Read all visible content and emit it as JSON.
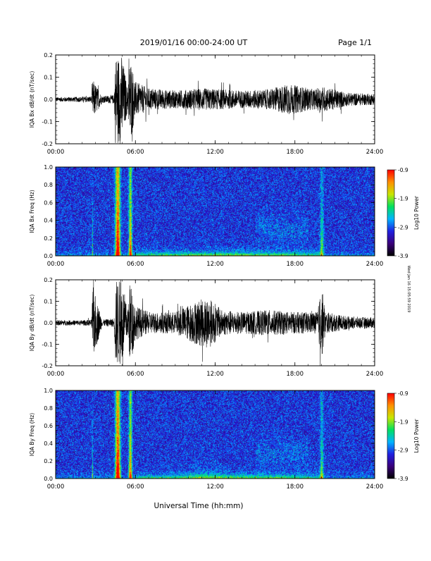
{
  "header": {
    "title": "2019/01/16  00:00-24:00 UT",
    "page": "Page 1/1"
  },
  "footer": {
    "xlabel": "Universal Time (hh:mm)",
    "side_stamp": "Wed Jan 16 15:05:59 2019"
  },
  "colorbar": {
    "label": "Log10 Power",
    "ticks": [
      "-0.9",
      "-1.9",
      "-2.9",
      "-3.9"
    ],
    "colors": [
      "#000000",
      "#3a007a",
      "#2020e0",
      "#00b4ff",
      "#00e060",
      "#c8e600",
      "#ff9000",
      "#ff0000"
    ]
  },
  "chart_data": [
    {
      "type": "line",
      "ylabel": "IQA Bx dB/dt (nT/sec)",
      "xlim": [
        "00:00",
        "24:00"
      ],
      "ylim": [
        -0.2,
        0.2
      ],
      "x_ticks": [
        "00:00",
        "06:00",
        "12:00",
        "18:00",
        "24:00"
      ],
      "y_ticks": [
        "0.2",
        "0.1",
        "0.0",
        "-0.1",
        "-0.2"
      ],
      "envelope_hours": [
        0,
        2,
        2.7,
        2.8,
        3.5,
        4.4,
        4.5,
        5.0,
        5.4,
        5.6,
        6.0,
        7,
        9,
        11,
        14,
        16,
        17.5,
        19.5,
        20,
        22,
        24
      ],
      "envelope_amplitude": [
        0.01,
        0.012,
        0.014,
        0.09,
        0.015,
        0.02,
        0.2,
        0.2,
        0.05,
        0.2,
        0.08,
        0.05,
        0.04,
        0.05,
        0.04,
        0.045,
        0.07,
        0.045,
        0.06,
        0.03,
        0.025
      ]
    },
    {
      "type": "heatmap",
      "ylabel": "IQA Bx Freq (Hz)",
      "xlim": [
        "00:00",
        "24:00"
      ],
      "ylim": [
        0.0,
        1.0
      ],
      "x_ticks": [
        "00:00",
        "06:00",
        "12:00",
        "18:00",
        "24:00"
      ],
      "y_ticks": [
        "1.0",
        "0.8",
        "0.6",
        "0.4",
        "0.2",
        "0.0"
      ],
      "color_range": [
        -3.9,
        -0.9
      ]
    },
    {
      "type": "line",
      "ylabel": "IQA By dB/dt (nT/sec)",
      "xlim": [
        "00:00",
        "24:00"
      ],
      "ylim": [
        -0.2,
        0.2
      ],
      "x_ticks": [
        "00:00",
        "06:00",
        "12:00",
        "18:00",
        "24:00"
      ],
      "y_ticks": [
        "0.2",
        "0.1",
        "0.0",
        "-0.1",
        "-0.2"
      ],
      "envelope_hours": [
        0,
        2,
        2.7,
        2.8,
        3.5,
        4.4,
        4.5,
        5.0,
        5.4,
        5.6,
        6.0,
        7,
        9,
        10.5,
        11.5,
        12.5,
        14,
        16,
        18,
        19.7,
        20.0,
        20.3,
        22,
        24
      ],
      "envelope_amplitude": [
        0.012,
        0.012,
        0.015,
        0.17,
        0.015,
        0.02,
        0.2,
        0.2,
        0.06,
        0.2,
        0.08,
        0.05,
        0.05,
        0.1,
        0.12,
        0.06,
        0.05,
        0.06,
        0.05,
        0.05,
        0.18,
        0.05,
        0.03,
        0.025
      ]
    },
    {
      "type": "heatmap",
      "ylabel": "IQA By Freq (Hz)",
      "xlim": [
        "00:00",
        "24:00"
      ],
      "ylim": [
        0.0,
        1.0
      ],
      "x_ticks": [
        "00:00",
        "06:00",
        "12:00",
        "18:00",
        "24:00"
      ],
      "y_ticks": [
        "1.0",
        "0.8",
        "0.6",
        "0.4",
        "0.2",
        "0.0"
      ],
      "color_range": [
        -3.9,
        -0.9
      ]
    }
  ]
}
